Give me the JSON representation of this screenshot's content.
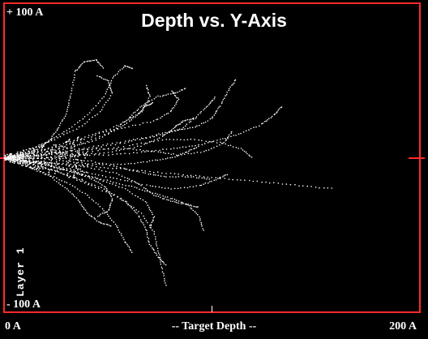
{
  "chart_data": {
    "type": "scatter",
    "title": "Depth vs. Y-Axis",
    "xlabel": "-- Target Depth --",
    "x_tick_labels": [
      "0 A",
      "200 A"
    ],
    "y_tick_labels": [
      "+ 100 A",
      "- 100 A"
    ],
    "side_label": "Layer 1",
    "xlim": [
      0,
      200
    ],
    "ylim": [
      -100,
      100
    ],
    "grid": false,
    "marker_color": "#ffffff",
    "frame_color": "#ff2a2a",
    "entry_y": 0,
    "tracks": [
      [
        [
          0,
          0
        ],
        [
          8,
          2
        ],
        [
          16,
          6
        ],
        [
          22,
          12
        ],
        [
          26,
          20
        ],
        [
          30,
          30
        ],
        [
          32,
          42
        ],
        [
          34,
          56
        ],
        [
          38,
          62
        ],
        [
          44,
          64
        ],
        [
          48,
          58
        ]
      ],
      [
        [
          0,
          0
        ],
        [
          10,
          4
        ],
        [
          20,
          10
        ],
        [
          30,
          18
        ],
        [
          40,
          28
        ],
        [
          48,
          40
        ],
        [
          52,
          52
        ],
        [
          58,
          60
        ],
        [
          62,
          58
        ]
      ],
      [
        [
          0,
          0
        ],
        [
          12,
          6
        ],
        [
          24,
          12
        ],
        [
          36,
          20
        ],
        [
          46,
          30
        ],
        [
          52,
          42
        ],
        [
          50,
          50
        ],
        [
          44,
          54
        ]
      ],
      [
        [
          0,
          0
        ],
        [
          14,
          4
        ],
        [
          28,
          8
        ],
        [
          42,
          14
        ],
        [
          56,
          22
        ],
        [
          66,
          30
        ],
        [
          70,
          40
        ],
        [
          68,
          48
        ]
      ],
      [
        [
          0,
          0
        ],
        [
          16,
          4
        ],
        [
          30,
          10
        ],
        [
          44,
          16
        ],
        [
          58,
          20
        ],
        [
          72,
          24
        ],
        [
          80,
          30
        ],
        [
          84,
          38
        ],
        [
          80,
          44
        ]
      ],
      [
        [
          0,
          0
        ],
        [
          18,
          2
        ],
        [
          36,
          6
        ],
        [
          54,
          10
        ],
        [
          70,
          14
        ],
        [
          82,
          18
        ],
        [
          92,
          20
        ],
        [
          100,
          26
        ],
        [
          104,
          34
        ],
        [
          108,
          44
        ],
        [
          112,
          52
        ]
      ],
      [
        [
          0,
          0
        ],
        [
          18,
          4
        ],
        [
          34,
          8
        ],
        [
          50,
          16
        ],
        [
          60,
          26
        ],
        [
          66,
          34
        ],
        [
          74,
          40
        ],
        [
          82,
          42
        ],
        [
          88,
          46
        ]
      ],
      [
        [
          0,
          0
        ],
        [
          20,
          2
        ],
        [
          40,
          4
        ],
        [
          60,
          8
        ],
        [
          76,
          12
        ],
        [
          90,
          12
        ],
        [
          104,
          10
        ],
        [
          114,
          6
        ],
        [
          120,
          0
        ]
      ],
      [
        [
          0,
          0
        ],
        [
          20,
          2
        ],
        [
          40,
          6
        ],
        [
          58,
          10
        ],
        [
          72,
          14
        ],
        [
          84,
          18
        ],
        [
          92,
          26
        ],
        [
          98,
          34
        ],
        [
          102,
          40
        ]
      ],
      [
        [
          0,
          0
        ],
        [
          16,
          0
        ],
        [
          32,
          2
        ],
        [
          50,
          2
        ],
        [
          66,
          4
        ],
        [
          80,
          6
        ],
        [
          92,
          8
        ],
        [
          104,
          12
        ],
        [
          114,
          16
        ],
        [
          124,
          22
        ],
        [
          130,
          28
        ],
        [
          134,
          34
        ]
      ],
      [
        [
          0,
          0
        ],
        [
          14,
          2
        ],
        [
          28,
          4
        ],
        [
          44,
          6
        ],
        [
          60,
          6
        ],
        [
          74,
          4
        ],
        [
          84,
          2
        ],
        [
          96,
          4
        ],
        [
          106,
          10
        ],
        [
          110,
          18
        ]
      ],
      [
        [
          0,
          0
        ],
        [
          16,
          -2
        ],
        [
          32,
          -4
        ],
        [
          48,
          -6
        ],
        [
          64,
          -8
        ],
        [
          80,
          -10
        ],
        [
          96,
          -12
        ],
        [
          112,
          -14
        ],
        [
          128,
          -16
        ],
        [
          144,
          -18
        ],
        [
          160,
          -20
        ]
      ],
      [
        [
          0,
          0
        ],
        [
          14,
          -2
        ],
        [
          28,
          -6
        ],
        [
          42,
          -10
        ],
        [
          56,
          -14
        ],
        [
          70,
          -18
        ],
        [
          82,
          -20
        ],
        [
          94,
          -18
        ],
        [
          102,
          -14
        ],
        [
          108,
          -10
        ]
      ],
      [
        [
          0,
          0
        ],
        [
          12,
          -4
        ],
        [
          24,
          -8
        ],
        [
          36,
          -14
        ],
        [
          48,
          -20
        ],
        [
          58,
          -28
        ],
        [
          64,
          -36
        ],
        [
          68,
          -46
        ],
        [
          70,
          -56
        ],
        [
          74,
          -64
        ],
        [
          78,
          -70
        ]
      ],
      [
        [
          0,
          0
        ],
        [
          10,
          -4
        ],
        [
          20,
          -10
        ],
        [
          30,
          -16
        ],
        [
          40,
          -24
        ],
        [
          48,
          -34
        ],
        [
          54,
          -44
        ],
        [
          58,
          -54
        ],
        [
          62,
          -62
        ]
      ],
      [
        [
          0,
          0
        ],
        [
          14,
          -4
        ],
        [
          28,
          -10
        ],
        [
          42,
          -18
        ],
        [
          56,
          -26
        ],
        [
          66,
          -36
        ],
        [
          72,
          -48
        ],
        [
          74,
          -60
        ],
        [
          76,
          -72
        ],
        [
          78,
          -84
        ]
      ],
      [
        [
          0,
          0
        ],
        [
          12,
          -2
        ],
        [
          24,
          -6
        ],
        [
          36,
          -10
        ],
        [
          48,
          -14
        ],
        [
          60,
          -18
        ],
        [
          70,
          -22
        ],
        [
          80,
          -26
        ],
        [
          88,
          -30
        ],
        [
          94,
          -38
        ],
        [
          96,
          -48
        ]
      ],
      [
        [
          0,
          0
        ],
        [
          16,
          -4
        ],
        [
          32,
          -8
        ],
        [
          46,
          -14
        ],
        [
          58,
          -20
        ],
        [
          68,
          -28
        ],
        [
          72,
          -38
        ],
        [
          70,
          -46
        ]
      ],
      [
        [
          0,
          0
        ],
        [
          10,
          -2
        ],
        [
          20,
          -4
        ],
        [
          30,
          -8
        ],
        [
          40,
          -12
        ],
        [
          48,
          -18
        ],
        [
          52,
          -26
        ],
        [
          50,
          -34
        ],
        [
          44,
          -38
        ]
      ],
      [
        [
          0,
          0
        ],
        [
          12,
          -6
        ],
        [
          22,
          -12
        ],
        [
          30,
          -20
        ],
        [
          36,
          -28
        ],
        [
          40,
          -36
        ],
        [
          46,
          -42
        ],
        [
          52,
          -44
        ]
      ],
      [
        [
          0,
          0
        ],
        [
          16,
          0
        ],
        [
          30,
          -2
        ],
        [
          44,
          -4
        ],
        [
          58,
          -4
        ],
        [
          70,
          -2
        ],
        [
          80,
          0
        ],
        [
          88,
          4
        ],
        [
          94,
          8
        ]
      ],
      [
        [
          0,
          0
        ],
        [
          18,
          0
        ],
        [
          36,
          2
        ],
        [
          52,
          4
        ],
        [
          66,
          8
        ],
        [
          76,
          14
        ],
        [
          82,
          20
        ],
        [
          86,
          24
        ],
        [
          92,
          26
        ]
      ],
      [
        [
          0,
          0
        ],
        [
          14,
          0
        ],
        [
          28,
          0
        ],
        [
          42,
          -2
        ],
        [
          56,
          -6
        ],
        [
          68,
          -10
        ],
        [
          78,
          -12
        ],
        [
          90,
          -12
        ],
        [
          100,
          -14
        ]
      ],
      [
        [
          0,
          0
        ],
        [
          16,
          2
        ],
        [
          30,
          6
        ],
        [
          44,
          12
        ],
        [
          56,
          20
        ],
        [
          64,
          28
        ],
        [
          68,
          34
        ],
        [
          72,
          36
        ]
      ],
      [
        [
          0,
          0
        ],
        [
          12,
          -2
        ],
        [
          26,
          -4
        ],
        [
          40,
          -6
        ],
        [
          54,
          -10
        ],
        [
          64,
          -16
        ],
        [
          72,
          -24
        ],
        [
          80,
          -28
        ],
        [
          88,
          -30
        ],
        [
          94,
          -32
        ]
      ]
    ]
  }
}
